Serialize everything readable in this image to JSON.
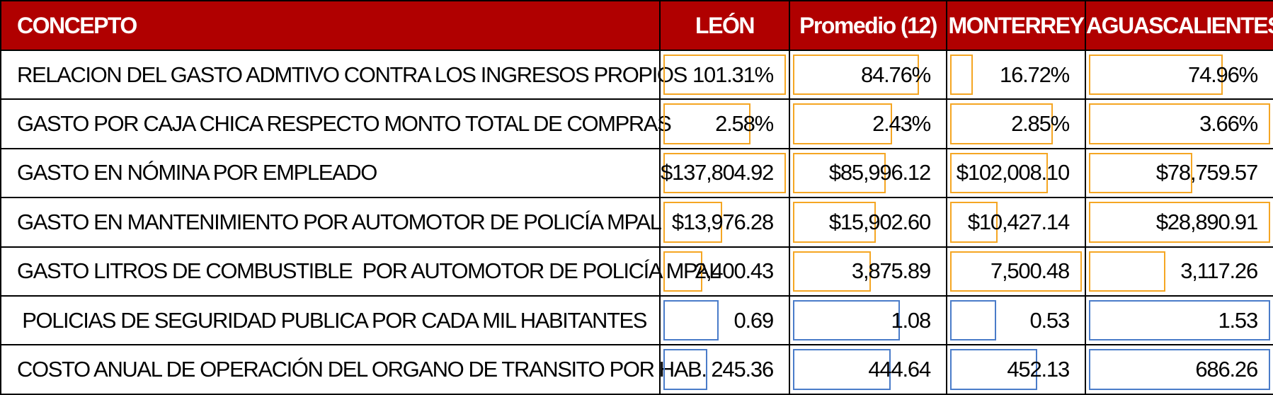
{
  "header": {
    "concept": "CONCEPTO",
    "columns": [
      "LEÓN",
      "Promedio (12)",
      "MONTERREY",
      "AGUASCALIENTES"
    ]
  },
  "colors": {
    "header_bg": "#b00000",
    "header_text": "#ffffff",
    "bar_orange": "#f5a623",
    "bar_blue": "#4a7cc9"
  },
  "rows": [
    {
      "concept": "RELACION DEL GASTO ADMTIVO CONTRA LOS INGRESOS PROPIOS",
      "values": [
        "101.31%",
        "84.76%",
        "16.72%",
        "74.96%"
      ],
      "bar_fraction": [
        1.0,
        0.84,
        0.17,
        0.74
      ],
      "bar_color": "orange"
    },
    {
      "concept": "GASTO POR CAJA CHICA RESPECTO MONTO TOTAL DE COMPRAS",
      "values": [
        "2.58%",
        "2.43%",
        "2.85%",
        "3.66%"
      ],
      "bar_fraction": [
        0.71,
        0.66,
        0.78,
        1.0
      ],
      "bar_color": "orange"
    },
    {
      "concept": "GASTO EN NÓMINA POR EMPLEADO",
      "values": [
        "$137,804.92",
        "$85,996.12",
        "$102,008.10",
        "$78,759.57"
      ],
      "bar_fraction": [
        1.0,
        0.62,
        0.74,
        0.57
      ],
      "bar_color": "orange"
    },
    {
      "concept": "GASTO EN MANTENIMIENTO POR AUTOMOTOR DE POLICÍA MPAL",
      "values": [
        "$13,976.28",
        "$15,902.60",
        "$10,427.14",
        "$28,890.91"
      ],
      "bar_fraction": [
        0.48,
        0.55,
        0.36,
        1.0
      ],
      "bar_color": "orange"
    },
    {
      "concept": "GASTO LITROS DE COMBUSTIBLE  POR AUTOMOTOR DE POLICÍA MPAL",
      "values": [
        "2,400.43",
        "3,875.89",
        "7,500.48",
        "3,117.26"
      ],
      "bar_fraction": [
        0.32,
        0.52,
        1.0,
        0.42
      ],
      "bar_color": "orange"
    },
    {
      "concept": " POLICIAS DE SEGURIDAD PUBLICA POR CADA MIL HABITANTES",
      "values": [
        "0.69",
        "1.08",
        "0.53",
        "1.53"
      ],
      "bar_fraction": [
        0.45,
        0.71,
        0.35,
        1.0
      ],
      "bar_color": "blue"
    },
    {
      "concept": "COSTO ANUAL DE OPERACIÓN DEL ORGANO DE TRANSITO POR HAB.",
      "values": [
        "245.36",
        "444.64",
        "452.13",
        "686.26"
      ],
      "bar_fraction": [
        0.36,
        0.65,
        0.66,
        1.0
      ],
      "bar_color": "blue"
    }
  ]
}
